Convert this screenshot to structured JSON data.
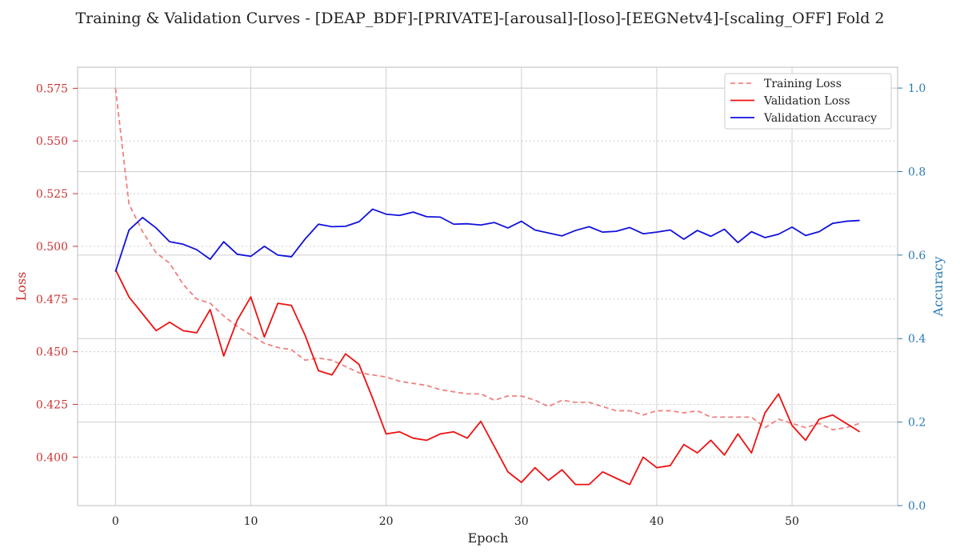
{
  "chart_data": {
    "type": "line",
    "title": "Training & Validation Curves - [DEAP_BDF]-[PRIVATE]-[arousal]-[loso]-[EEGNetv4]-[scaling_OFF] Fold 2",
    "xlabel": "Epoch",
    "ylabel_left": "Loss",
    "ylabel_right": "Accuracy",
    "xlim": [
      -2.8,
      57.8
    ],
    "ylim_left": [
      0.377,
      0.585
    ],
    "ylim_right": [
      0.0,
      1.05
    ],
    "x_ticks": [
      0,
      10,
      20,
      30,
      40,
      50
    ],
    "y_ticks_left": [
      0.4,
      0.425,
      0.45,
      0.475,
      0.5,
      0.525,
      0.55,
      0.575
    ],
    "y_ticks_left_labels": [
      "0.400",
      "0.425",
      "0.450",
      "0.475",
      "0.500",
      "0.525",
      "0.550",
      "0.575"
    ],
    "y_ticks_right": [
      0.0,
      0.2,
      0.4,
      0.6,
      0.8,
      1.0
    ],
    "y_ticks_right_labels": [
      "0.0",
      "0.2",
      "0.4",
      "0.6",
      "0.8",
      "1.0"
    ],
    "grid": true,
    "legend_position": "top-right",
    "x": [
      0,
      1,
      2,
      3,
      4,
      5,
      6,
      7,
      8,
      9,
      10,
      11,
      12,
      13,
      14,
      15,
      16,
      17,
      18,
      19,
      20,
      21,
      22,
      23,
      24,
      25,
      26,
      27,
      28,
      29,
      30,
      31,
      32,
      33,
      34,
      35,
      36,
      37,
      38,
      39,
      40,
      41,
      42,
      43,
      44,
      45,
      46,
      47,
      48,
      49,
      50,
      51,
      52,
      53,
      54,
      55
    ],
    "series": [
      {
        "name": "Training Loss",
        "axis": "left",
        "color": "#f08080",
        "style": "dashed",
        "values": [
          0.575,
          0.52,
          0.507,
          0.497,
          0.492,
          0.482,
          0.475,
          0.473,
          0.467,
          0.462,
          0.458,
          0.454,
          0.452,
          0.451,
          0.446,
          0.447,
          0.446,
          0.443,
          0.44,
          0.439,
          0.438,
          0.436,
          0.435,
          0.434,
          0.432,
          0.431,
          0.43,
          0.43,
          0.427,
          0.429,
          0.429,
          0.427,
          0.424,
          0.427,
          0.426,
          0.426,
          0.424,
          0.422,
          0.422,
          0.42,
          0.422,
          0.422,
          0.421,
          0.422,
          0.419,
          0.419,
          0.419,
          0.419,
          0.414,
          0.418,
          0.416,
          0.414,
          0.416,
          0.413,
          0.414,
          0.416
        ]
      },
      {
        "name": "Validation Loss",
        "axis": "left",
        "color": "#ee1111",
        "style": "solid",
        "values": [
          0.489,
          0.476,
          0.468,
          0.46,
          0.464,
          0.46,
          0.459,
          0.47,
          0.448,
          0.465,
          0.476,
          0.457,
          0.473,
          0.472,
          0.458,
          0.441,
          0.439,
          0.449,
          0.444,
          0.428,
          0.411,
          0.412,
          0.409,
          0.408,
          0.411,
          0.412,
          0.409,
          0.417,
          0.405,
          0.393,
          0.388,
          0.395,
          0.389,
          0.394,
          0.387,
          0.387,
          0.393,
          0.39,
          0.387,
          0.4,
          0.395,
          0.396,
          0.406,
          0.402,
          0.408,
          0.401,
          0.411,
          0.402,
          0.421,
          0.43,
          0.415,
          0.408,
          0.418,
          0.42,
          0.416,
          0.412
        ]
      },
      {
        "name": "Validation Accuracy",
        "axis": "right",
        "color": "#1111dd",
        "style": "solid",
        "values": [
          0.56,
          0.66,
          0.69,
          0.665,
          0.632,
          0.626,
          0.613,
          0.59,
          0.632,
          0.602,
          0.597,
          0.621,
          0.6,
          0.596,
          0.638,
          0.674,
          0.668,
          0.669,
          0.68,
          0.71,
          0.698,
          0.695,
          0.703,
          0.692,
          0.691,
          0.674,
          0.675,
          0.672,
          0.678,
          0.665,
          0.681,
          0.66,
          0.653,
          0.646,
          0.659,
          0.668,
          0.655,
          0.657,
          0.666,
          0.651,
          0.655,
          0.66,
          0.638,
          0.659,
          0.645,
          0.662,
          0.63,
          0.656,
          0.642,
          0.65,
          0.667,
          0.647,
          0.656,
          0.676,
          0.681,
          0.683
        ]
      }
    ]
  }
}
